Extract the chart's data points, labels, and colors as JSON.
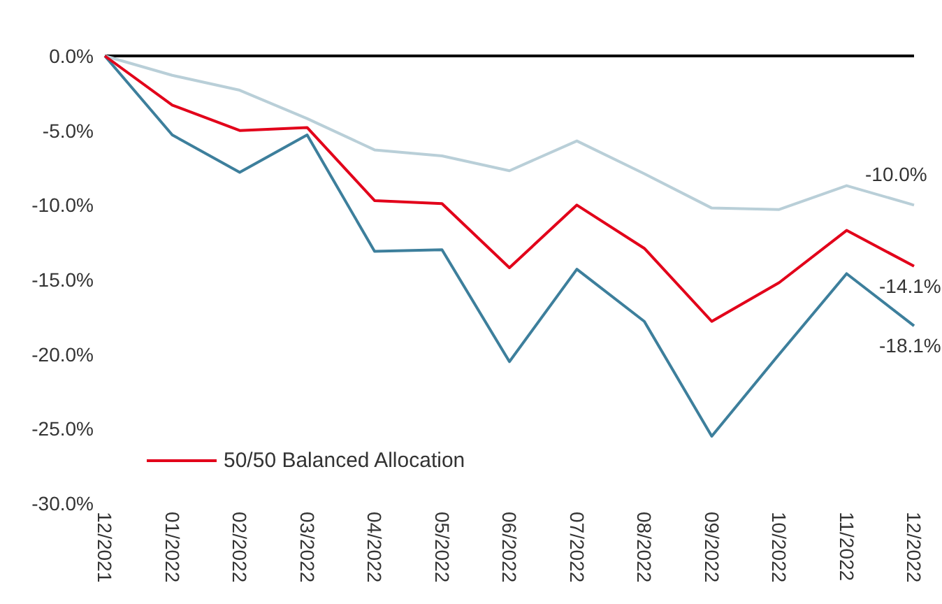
{
  "chart_data": {
    "type": "line",
    "categories": [
      "12/2021",
      "01/2022",
      "02/2022",
      "03/2022",
      "04/2022",
      "05/2022",
      "06/2022",
      "07/2022",
      "08/2022",
      "09/2022",
      "10/2022",
      "11/2022",
      "12/2022"
    ],
    "series": [
      {
        "color": "#3d7f9c",
        "values": [
          0,
          -5.3,
          -7.8,
          -5.3,
          -13.1,
          -13.0,
          -20.5,
          -14.3,
          -17.8,
          -25.5,
          -20.0,
          -14.6,
          -18.1
        ],
        "value_labels": [
          null,
          null,
          null,
          null,
          null,
          null,
          null,
          null,
          null,
          null,
          null,
          null,
          "-18.1%"
        ]
      },
      {
        "color": "#b9cfd8",
        "values": [
          0,
          -1.3,
          -2.3,
          -4.2,
          -6.3,
          -6.7,
          -7.7,
          -5.7,
          -7.9,
          -10.2,
          -10.3,
          -8.7,
          -10.0
        ],
        "value_labels": [
          null,
          null,
          null,
          null,
          null,
          null,
          null,
          null,
          null,
          null,
          null,
          null,
          "-10.0%"
        ]
      },
      {
        "name": "50/50 Balanced Allocation",
        "color": "#e2001a",
        "values": [
          0,
          -3.3,
          -5.0,
          -4.8,
          -9.7,
          -9.9,
          -14.2,
          -10.0,
          -12.9,
          -17.8,
          -15.2,
          -11.7,
          -14.1
        ],
        "value_labels": [
          null,
          null,
          null,
          null,
          null,
          null,
          null,
          null,
          null,
          null,
          null,
          null,
          "-14.1%"
        ]
      }
    ],
    "ylim": [
      -30,
      0
    ],
    "yticks": [
      {
        "value": -30,
        "label": "-30.0%"
      },
      {
        "value": -25,
        "label": "-25.0%"
      },
      {
        "value": -20,
        "label": "-20.0%"
      },
      {
        "value": -15,
        "label": "-15.0%"
      },
      {
        "value": -10,
        "label": "-10.0%"
      },
      {
        "value": -5,
        "label": "-5.0%"
      },
      {
        "value": 0,
        "label": "0.0%"
      }
    ],
    "ref_lines": [
      {
        "axis": "y",
        "value": 0,
        "color": "#000000"
      }
    ],
    "legend": "bottom left",
    "grid": false,
    "marker": "none",
    "line_style": "solid"
  }
}
